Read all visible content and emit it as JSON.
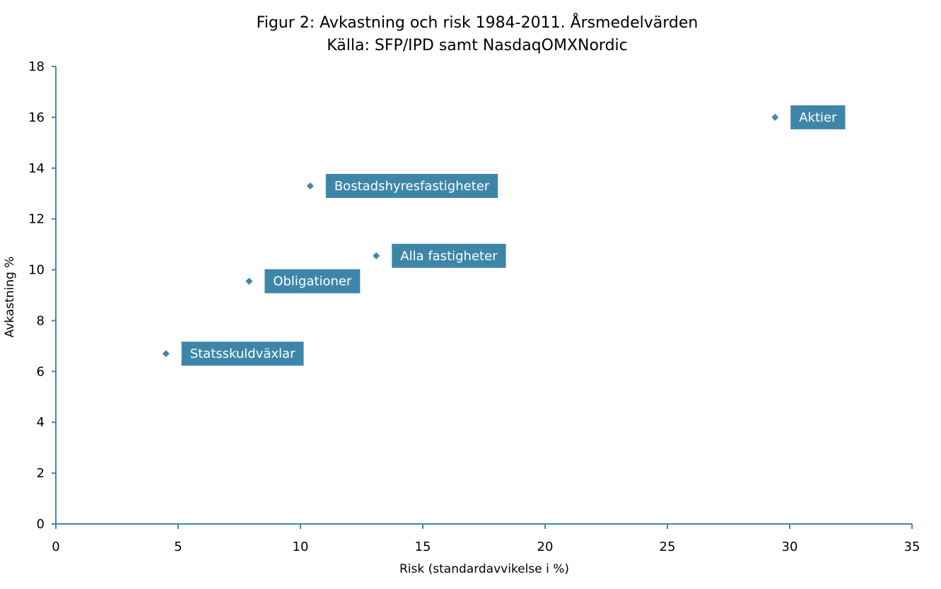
{
  "chart_data": {
    "type": "scatter",
    "title": "Figur 2: Avkastning och risk 1984-2011. Årsmedelvärden",
    "subtitle": "Källa: SFP/IPD samt NasdaqOMXNordic",
    "xlabel": "Risk (standardavvikelse i %)",
    "ylabel": "Avkastning %",
    "xlim": [
      0,
      35
    ],
    "ylim": [
      0,
      18
    ],
    "xticks": [
      0,
      5,
      10,
      15,
      20,
      25,
      30,
      35
    ],
    "yticks": [
      0,
      2,
      4,
      6,
      8,
      10,
      12,
      14,
      16,
      18
    ],
    "grid": false,
    "marker_color": "#4187A9",
    "label_box_color": "#3E86A8",
    "points": [
      {
        "label": "Aktier",
        "x": 29.4,
        "y": 16.0
      },
      {
        "label": "Bostadshyresfastigheter",
        "x": 10.4,
        "y": 13.3
      },
      {
        "label": "Alla fastigheter",
        "x": 13.1,
        "y": 10.55
      },
      {
        "label": "Obligationer",
        "x": 7.9,
        "y": 9.55
      },
      {
        "label": "Statsskuldväxlar",
        "x": 4.5,
        "y": 6.7
      }
    ]
  }
}
